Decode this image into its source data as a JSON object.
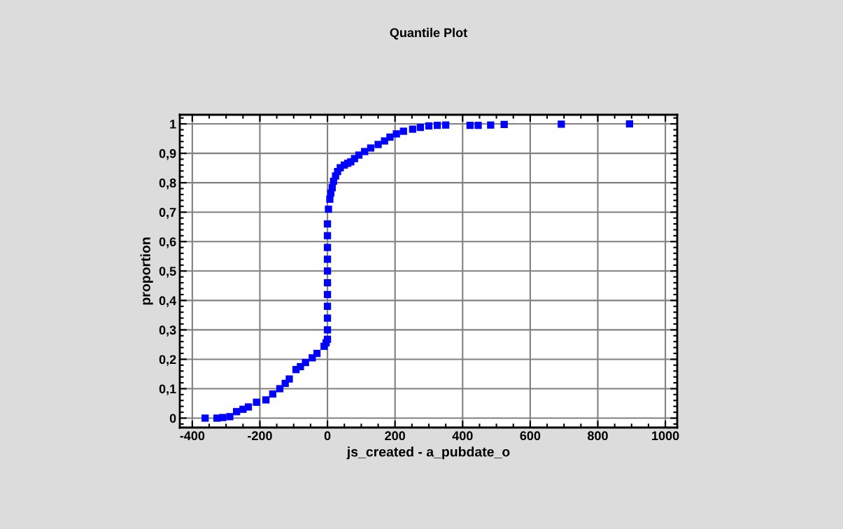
{
  "chart_data": {
    "type": "scatter",
    "title": "Quantile Plot",
    "xlabel": "js_created - a_pubdate_o",
    "ylabel": "proportion",
    "x": [
      -362,
      -327,
      -310,
      -289,
      -269,
      -250,
      -234,
      -210,
      -182,
      -162,
      -141,
      -125,
      -113,
      -93,
      -80,
      -65,
      -45,
      -31,
      -10,
      -4,
      0,
      0,
      0,
      0,
      0,
      0,
      0,
      0,
      0,
      0,
      0,
      3,
      7,
      10,
      14,
      18,
      24,
      30,
      38,
      50,
      60,
      69,
      80,
      93,
      110,
      128,
      150,
      169,
      185,
      204,
      225,
      252,
      275,
      300,
      325,
      350,
      422,
      446,
      483,
      523,
      692,
      894
    ],
    "series": [
      {
        "color": "#0000ff",
        "values": [
          0,
          0,
          0.002,
          0.005,
          0.022,
          0.03,
          0.038,
          0.054,
          0.062,
          0.082,
          0.1,
          0.118,
          0.133,
          0.165,
          0.175,
          0.189,
          0.205,
          0.22,
          0.244,
          0.256,
          0.268,
          0.3,
          0.34,
          0.38,
          0.42,
          0.46,
          0.5,
          0.54,
          0.58,
          0.62,
          0.66,
          0.71,
          0.744,
          0.765,
          0.783,
          0.805,
          0.823,
          0.838,
          0.851,
          0.86,
          0.866,
          0.871,
          0.882,
          0.894,
          0.906,
          0.918,
          0.93,
          0.942,
          0.955,
          0.966,
          0.975,
          0.982,
          0.988,
          0.993,
          0.995,
          0.996,
          0.995,
          0.995,
          0.996,
          0.998,
          0.999,
          1.0
        ]
      }
    ],
    "marker": "square",
    "grid": true,
    "xlim": [
      -437,
      1035
    ],
    "ylim": [
      -0.032,
      1.031
    ],
    "xticks": [
      -400,
      -200,
      0,
      200,
      400,
      600,
      800,
      1000
    ],
    "yticks": [
      0,
      {
        "value": 0.1,
        "label": "0,1"
      },
      {
        "value": 0.2,
        "label": "0,2"
      },
      {
        "value": 0.3,
        "label": "0,3"
      },
      {
        "value": 0.4,
        "label": "0,4"
      },
      {
        "value": 0.5,
        "label": "0,5"
      },
      {
        "value": 0.6,
        "label": "0,6"
      },
      {
        "value": 0.7,
        "label": "0,7"
      },
      {
        "value": 0.8,
        "label": "0,8"
      },
      {
        "value": 0.9,
        "label": "0,9"
      },
      1
    ]
  }
}
